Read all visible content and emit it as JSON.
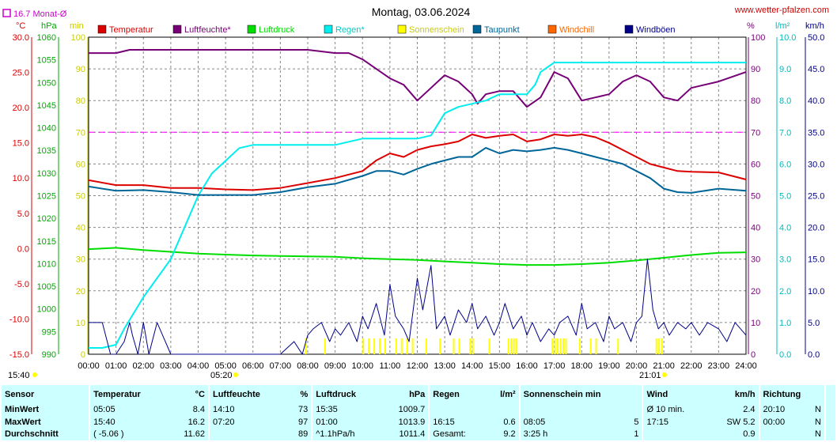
{
  "header": {
    "title": "Montag, 03.06.2024",
    "site": "www.wetter-pfalzen.com",
    "month_avg": "16.7 Monat-Ø",
    "time_left": "15:40",
    "time_0520": "05:20",
    "time_2101": "21:01"
  },
  "units": {
    "temp": "°C",
    "pressure": "hPa",
    "min": "min",
    "percent": "%",
    "rain": "l/m²",
    "wind": "km/h"
  },
  "legend": [
    {
      "label": "Temperatur",
      "color": "#dd0000"
    },
    {
      "label": "Luftfeuchte*",
      "color": "#770077"
    },
    {
      "label": "Luftdruck",
      "color": "#00dd00"
    },
    {
      "label": "Regen*",
      "color": "#00eeee"
    },
    {
      "label": "Sonnenschein",
      "color": "#ffff00"
    },
    {
      "label": "Taupunkt",
      "color": "#006699"
    },
    {
      "label": "Windchill",
      "color": "#ff6600"
    },
    {
      "label": "Windböen",
      "color": "#000088"
    }
  ],
  "chart_data": {
    "type": "line",
    "x_ticks": [
      "00:00",
      "01:00",
      "02:00",
      "03:00",
      "04:00",
      "05:00",
      "06:00",
      "07:00",
      "08:00",
      "09:00",
      "10:00",
      "11:00",
      "12:00",
      "13:00",
      "14:00",
      "15:00",
      "16:00",
      "17:00",
      "18:00",
      "19:00",
      "20:00",
      "21:00",
      "22:00",
      "23:00",
      "24:00"
    ],
    "axes": {
      "temp": {
        "min": -15,
        "max": 30,
        "ticks": [
          "30.0",
          "25.0",
          "20.0",
          "15.0",
          "10.0",
          "5.0",
          "0.0",
          "-5.0",
          "-10.0",
          "-15.0"
        ]
      },
      "pressure": {
        "min": 990,
        "max": 1060,
        "ticks": [
          "1060",
          "1055",
          "1050",
          "1045",
          "1040",
          "1035",
          "1030",
          "1025",
          "1020",
          "1015",
          "1010",
          "1005",
          "1000",
          "995",
          "990"
        ]
      },
      "minutes": {
        "min": 0,
        "max": 100,
        "ticks": [
          "100",
          "90",
          "80",
          "70",
          "60",
          "50",
          "40",
          "30",
          "20",
          "10",
          "0"
        ]
      },
      "percent": {
        "min": 0,
        "max": 100,
        "ticks": [
          "100",
          "90",
          "80",
          "70",
          "60",
          "50",
          "40",
          "30",
          "20",
          "10",
          "0"
        ]
      },
      "rain": {
        "min": 0,
        "max": 10,
        "ticks": [
          "10.0",
          "9.0",
          "8.0",
          "7.0",
          "6.0",
          "5.0",
          "4.0",
          "3.0",
          "2.0",
          "1.0",
          "0.0"
        ]
      },
      "wind": {
        "min": 0,
        "max": 50,
        "ticks": [
          "50.0",
          "45.0",
          "40.0",
          "35.0",
          "30.0",
          "25.0",
          "20.0",
          "15.0",
          "10.0",
          "5.0",
          "0.0"
        ]
      }
    },
    "reference_line": {
      "axis": "percent",
      "value": 70,
      "color": "#ff00ff"
    },
    "series": [
      {
        "name": "Temperatur",
        "axis": "temp",
        "color": "#dd0000",
        "x": [
          0,
          1,
          2,
          3,
          4,
          5,
          6,
          7,
          8,
          9,
          10,
          10.5,
          11,
          11.5,
          12,
          12.5,
          13,
          13.5,
          14,
          14.5,
          15,
          15.5,
          16,
          16.5,
          17,
          17.5,
          18,
          18.5,
          19,
          19.5,
          20,
          20.5,
          21,
          21.5,
          22,
          23,
          24
        ],
        "y": [
          9.7,
          9.0,
          9.0,
          8.6,
          8.6,
          8.4,
          8.3,
          8.6,
          9.3,
          10.0,
          11.0,
          12.5,
          13.5,
          13.0,
          14.0,
          14.5,
          14.8,
          15.2,
          16.2,
          15.7,
          16.0,
          16.2,
          15.2,
          15.5,
          16.2,
          16.0,
          16.2,
          15.8,
          15.0,
          14.0,
          13.0,
          12.0,
          11.5,
          11.0,
          10.9,
          10.8,
          9.8
        ]
      },
      {
        "name": "Luftfeuchte*",
        "axis": "percent",
        "color": "#770077",
        "x": [
          0,
          1,
          1.5,
          2,
          3,
          4,
          5,
          6,
          7,
          8,
          9,
          9.5,
          10,
          11,
          11.5,
          12,
          12.5,
          13,
          13.5,
          14,
          14.2,
          14.5,
          15,
          15.5,
          16,
          16.5,
          17,
          17.5,
          18,
          18.5,
          19,
          19.5,
          20,
          20.5,
          21,
          21.5,
          22,
          23,
          24
        ],
        "y": [
          95,
          95,
          96,
          96,
          96,
          96,
          96,
          96,
          96,
          96,
          95,
          95,
          93,
          87,
          85,
          80,
          84,
          88,
          86,
          82,
          79,
          82,
          83,
          83,
          78,
          81,
          89,
          87,
          80,
          81,
          82,
          86,
          88,
          86,
          81,
          80,
          84,
          86,
          89
        ]
      },
      {
        "name": "Luftdruck",
        "axis": "pressure",
        "color": "#00dd00",
        "x": [
          0,
          1,
          2,
          3,
          4,
          5,
          6,
          7,
          8,
          9,
          10,
          11,
          12,
          13,
          14,
          15,
          16,
          17,
          18,
          19,
          20,
          21,
          22,
          23,
          24
        ],
        "y": [
          1013.2,
          1013.5,
          1013.0,
          1012.6,
          1012.2,
          1012.0,
          1011.8,
          1011.7,
          1011.6,
          1011.5,
          1011.2,
          1011.0,
          1010.8,
          1010.5,
          1010.2,
          1009.9,
          1009.7,
          1009.7,
          1009.9,
          1010.2,
          1010.7,
          1011.3,
          1011.9,
          1012.4,
          1012.5
        ]
      },
      {
        "name": "Regen*",
        "axis": "rain",
        "color": "#00eeee",
        "x": [
          0,
          0.5,
          1,
          1.3,
          2,
          3,
          3.5,
          4,
          4.5,
          5,
          5.5,
          6,
          7,
          8,
          9,
          9.5,
          10,
          11,
          12,
          12.5,
          13,
          13.5,
          14,
          14.5,
          15,
          15.5,
          16,
          16.3,
          16.5,
          17,
          18,
          19,
          20,
          21,
          22,
          23,
          24
        ],
        "y": [
          0.2,
          0.2,
          0.3,
          0.8,
          1.8,
          3.0,
          4.0,
          5.0,
          5.7,
          6.1,
          6.5,
          6.6,
          6.6,
          6.6,
          6.6,
          6.7,
          6.8,
          6.8,
          6.8,
          6.9,
          7.6,
          7.8,
          7.9,
          8.0,
          8.2,
          8.2,
          8.2,
          8.5,
          8.9,
          9.2,
          9.2,
          9.2,
          9.2,
          9.2,
          9.2,
          9.2,
          9.2
        ]
      },
      {
        "name": "Taupunkt",
        "axis": "temp",
        "color": "#006699",
        "x": [
          0,
          1,
          2,
          3,
          4,
          5,
          6,
          7,
          8,
          9,
          10,
          10.5,
          11,
          11.5,
          12,
          12.5,
          13,
          13.5,
          14,
          14.5,
          15,
          15.5,
          16,
          16.5,
          17,
          17.5,
          18,
          18.5,
          19,
          19.5,
          20,
          20.5,
          21,
          21.5,
          22,
          23,
          24
        ],
        "y": [
          8.8,
          8.2,
          8.3,
          8.0,
          7.6,
          7.6,
          7.6,
          8.0,
          8.7,
          9.2,
          10.3,
          11.0,
          11.0,
          10.5,
          11.3,
          12.0,
          12.5,
          13.0,
          13.0,
          14.3,
          13.5,
          14.0,
          13.8,
          14.0,
          14.3,
          14.0,
          13.5,
          13.0,
          12.5,
          12.0,
          11.0,
          10.0,
          8.5,
          8.0,
          7.9,
          8.5,
          8.2
        ]
      },
      {
        "name": "Windböen",
        "axis": "wind",
        "color": "#000088",
        "x": [
          0,
          0.5,
          0.8,
          1,
          1.3,
          1.5,
          1.6,
          1.8,
          2,
          2.2,
          2.5,
          2.7,
          3,
          4,
          5,
          6,
          7,
          7.5,
          7.8,
          8,
          8.2,
          8.5,
          8.8,
          9,
          9.2,
          9.5,
          9.8,
          10,
          10.2,
          10.5,
          10.8,
          11,
          11.2,
          11.5,
          11.7,
          12,
          12.2,
          12.5,
          12.7,
          13,
          13.2,
          13.5,
          13.8,
          14,
          14.2,
          14.5,
          14.8,
          15,
          15.2,
          15.5,
          15.8,
          16,
          16.2,
          16.5,
          16.8,
          17,
          17.2,
          17.5,
          17.8,
          18,
          18.2,
          18.5,
          18.8,
          19,
          19.2,
          19.5,
          19.8,
          20,
          20.2,
          20.4,
          20.6,
          20.8,
          21,
          21.2,
          21.5,
          21.8,
          22,
          22.3,
          22.6,
          23,
          23.3,
          23.6,
          23.8,
          24
        ],
        "y": [
          5,
          5,
          0,
          0,
          2,
          5,
          3,
          0,
          5,
          0,
          5,
          3,
          0,
          0,
          0,
          0,
          0,
          2,
          0,
          3,
          4,
          5,
          2,
          4,
          3,
          5,
          2,
          6,
          4,
          8,
          3,
          11,
          6,
          4,
          2,
          12,
          7,
          14,
          4,
          6,
          3,
          7,
          5,
          8,
          4,
          6,
          3,
          5,
          8,
          4,
          6,
          3,
          5,
          2,
          4,
          3,
          5,
          6,
          3,
          8,
          4,
          5,
          2,
          6,
          4,
          5,
          2,
          5,
          6,
          15,
          7,
          4,
          5,
          3,
          5,
          4,
          5,
          3,
          5,
          4,
          2,
          5,
          4,
          3
        ]
      }
    ],
    "sunshine_bars_x": [
      7.9,
      8.6,
      10.0,
      10.2,
      10.4,
      10.6,
      10.8,
      11.2,
      11.4,
      11.6,
      11.8,
      12.3,
      12.8,
      13.3,
      13.5,
      13.9,
      14.0,
      14.6,
      15.3,
      15.4,
      15.5,
      15.6,
      16.9,
      17.0,
      17.1,
      17.2,
      17.3,
      17.4,
      17.9,
      18.3,
      18.5,
      19.3,
      20.7,
      20.8,
      20.9
    ],
    "sunshine_bar_height_min": 5
  },
  "stats": {
    "headers": [
      "Sensor",
      "Temperatur",
      "°C",
      "Luftfeuchte",
      "%",
      "Luftdruck",
      "hPa",
      "Regen",
      "l/m²",
      "Sonnenschein min",
      "Wind",
      "km/h",
      "Richtung"
    ],
    "rows": [
      {
        "label": "MinWert",
        "cells": [
          "05:05",
          "8.4",
          "14:10",
          "73",
          "15:35",
          "1009.7",
          "",
          "",
          "",
          "",
          "Ø 10 min.",
          "2.4",
          "20:10",
          "N"
        ]
      },
      {
        "label": "MaxWert",
        "cells": [
          "15:40",
          "16.2",
          "07:20",
          "97",
          "01:00",
          "1013.9",
          "16:15",
          "0.6",
          "08:05",
          "5",
          "17:15",
          "SW 5.2",
          "00:00",
          "N"
        ]
      },
      {
        "label": "Durchschnitt",
        "cells": [
          "( -5.06 )",
          "11.62",
          "",
          "89",
          "^1.1hPa/h",
          "1011.4",
          "Gesamt:",
          "9.2",
          "3:25 h",
          "1",
          "",
          "0.9",
          "",
          "N"
        ]
      }
    ]
  }
}
